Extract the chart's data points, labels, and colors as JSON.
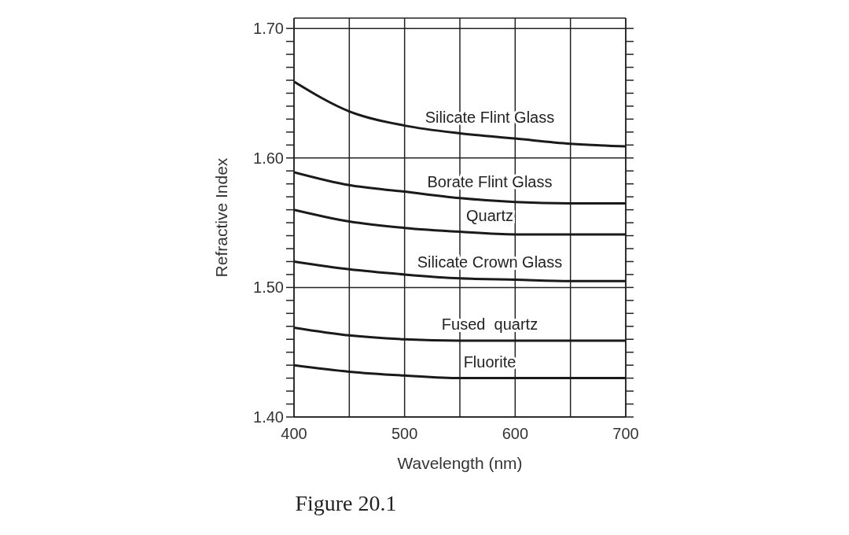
{
  "chart_data": {
    "type": "line",
    "xlabel": "Wavelength (nm)",
    "ylabel": "Refractive Index",
    "annotations": [
      "Figure 20.1"
    ],
    "x": [
      400,
      450,
      500,
      550,
      600,
      650,
      700
    ],
    "xlim": [
      400,
      700
    ],
    "xticks": [
      400,
      {
        "value": 450,
        "label": null
      },
      500,
      {
        "value": 550,
        "label": null
      },
      600,
      {
        "value": 650,
        "label": null
      },
      700
    ],
    "ylim": [
      1.4,
      1.708
    ],
    "yticks": [
      {
        "value": 1.4,
        "label": "1.40"
      },
      {
        "value": 1.41,
        "label": null
      },
      {
        "value": 1.42,
        "label": null
      },
      {
        "value": 1.43,
        "label": null
      },
      {
        "value": 1.44,
        "label": null
      },
      {
        "value": 1.45,
        "label": null
      },
      {
        "value": 1.46,
        "label": null
      },
      {
        "value": 1.47,
        "label": null
      },
      {
        "value": 1.48,
        "label": null
      },
      {
        "value": 1.49,
        "label": null
      },
      {
        "value": 1.5,
        "label": "1.50"
      },
      {
        "value": 1.51,
        "label": null
      },
      {
        "value": 1.52,
        "label": null
      },
      {
        "value": 1.53,
        "label": null
      },
      {
        "value": 1.54,
        "label": null
      },
      {
        "value": 1.55,
        "label": null
      },
      {
        "value": 1.56,
        "label": null
      },
      {
        "value": 1.57,
        "label": null
      },
      {
        "value": 1.58,
        "label": null
      },
      {
        "value": 1.59,
        "label": null
      },
      {
        "value": 1.6,
        "label": "1.60"
      },
      {
        "value": 1.61,
        "label": null
      },
      {
        "value": 1.62,
        "label": null
      },
      {
        "value": 1.63,
        "label": null
      },
      {
        "value": 1.64,
        "label": null
      },
      {
        "value": 1.65,
        "label": null
      },
      {
        "value": 1.66,
        "label": null
      },
      {
        "value": 1.67,
        "label": null
      },
      {
        "value": 1.68,
        "label": null
      },
      {
        "value": 1.69,
        "label": null
      },
      {
        "value": 1.7,
        "label": "1.70"
      }
    ],
    "grid": true,
    "legend": false,
    "marker": "none",
    "line_style": "solid",
    "series": [
      {
        "name": "Silicate Flint Glass",
        "color": "#1a1a1a",
        "values": [
          1.659,
          1.636,
          1.625,
          1.619,
          1.615,
          1.611,
          1.609
        ]
      },
      {
        "name": "Borate Flint Glass",
        "color": "#1a1a1a",
        "values": [
          1.589,
          1.579,
          1.574,
          1.569,
          1.566,
          1.565,
          1.565
        ]
      },
      {
        "name": "Quartz",
        "color": "#1a1a1a",
        "values": [
          1.56,
          1.551,
          1.546,
          1.543,
          1.541,
          1.541,
          1.541
        ]
      },
      {
        "name": "Silicate Crown Glass",
        "color": "#1a1a1a",
        "values": [
          1.52,
          1.514,
          1.51,
          1.507,
          1.506,
          1.505,
          1.505
        ]
      },
      {
        "name": "Fused  quartz",
        "color": "#1a1a1a",
        "values": [
          1.469,
          1.463,
          1.46,
          1.459,
          1.459,
          1.459,
          1.459
        ]
      },
      {
        "name": "Fluorite",
        "color": "#1a1a1a",
        "values": [
          1.44,
          1.435,
          1.432,
          1.43,
          1.43,
          1.43,
          1.43
        ]
      }
    ]
  }
}
